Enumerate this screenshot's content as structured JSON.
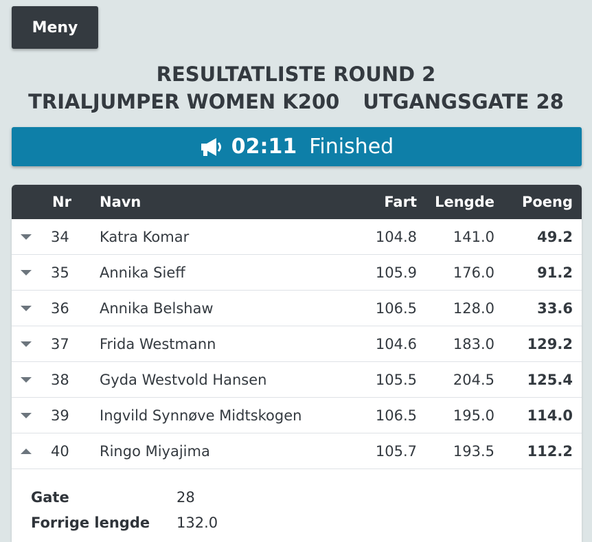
{
  "menu": {
    "label": "Meny"
  },
  "title": {
    "line1": "RESULTATLISTE ROUND 2",
    "line2_left": "TRIALJUMPER WOMEN K200",
    "line2_right": "UTGANGSGATE 28"
  },
  "status": {
    "icon": "megaphone-icon",
    "time": "02:11",
    "text": "Finished",
    "color": "#0e7fa8"
  },
  "table": {
    "headers": {
      "nr": "Nr",
      "name": "Navn",
      "fart": "Fart",
      "lengde": "Lengde",
      "poeng": "Poeng"
    },
    "rows": [
      {
        "arrow": "down",
        "nr": "34",
        "name": "Katra Komar",
        "fart": "104.8",
        "lengde": "141.0",
        "poeng": "49.2"
      },
      {
        "arrow": "down",
        "nr": "35",
        "name": "Annika Sieff",
        "fart": "105.9",
        "lengde": "176.0",
        "poeng": "91.2"
      },
      {
        "arrow": "down",
        "nr": "36",
        "name": "Annika Belshaw",
        "fart": "106.5",
        "lengde": "128.0",
        "poeng": "33.6"
      },
      {
        "arrow": "down",
        "nr": "37",
        "name": "Frida Westmann",
        "fart": "104.6",
        "lengde": "183.0",
        "poeng": "129.2"
      },
      {
        "arrow": "down",
        "nr": "38",
        "name": "Gyda Westvold Hansen",
        "fart": "105.5",
        "lengde": "204.5",
        "poeng": "125.4"
      },
      {
        "arrow": "down",
        "nr": "39",
        "name": "Ingvild Synnøve Midtskogen",
        "fart": "106.5",
        "lengde": "195.0",
        "poeng": "114.0"
      },
      {
        "arrow": "up",
        "nr": "40",
        "name": "Ringo Miyajima",
        "fart": "105.7",
        "lengde": "193.5",
        "poeng": "112.2"
      }
    ]
  },
  "details": [
    {
      "label": "Gate",
      "value": "28"
    },
    {
      "label": "Forrige lengde",
      "value": "132.0"
    }
  ]
}
